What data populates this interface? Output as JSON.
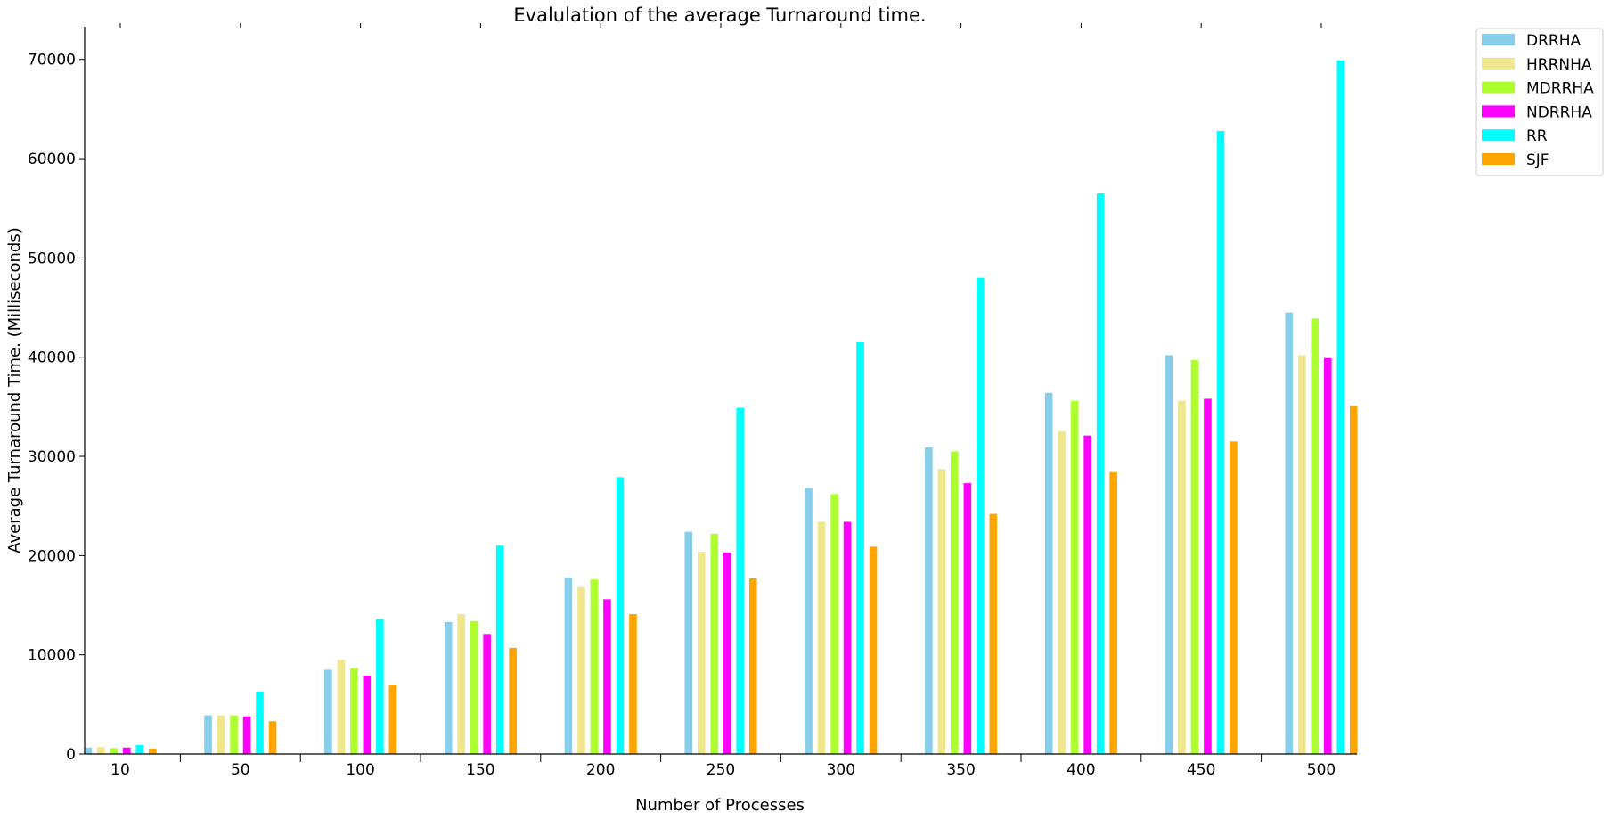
{
  "chart_data": {
    "type": "bar",
    "title": "Evalulation of the average Turnaround time.",
    "xlabel": "Number of Processes",
    "ylabel": "Average Turnaround Time. (Milliseconds)",
    "categories": [
      "10",
      "50",
      "100",
      "150",
      "200",
      "250",
      "300",
      "350",
      "400",
      "450",
      "500"
    ],
    "ylim": [
      0,
      73300
    ],
    "yticks": [
      "0",
      "10000",
      "20000",
      "30000",
      "40000",
      "50000",
      "60000",
      "70000"
    ],
    "grid": false,
    "legend_position": "top-right outside",
    "series": [
      {
        "name": "DRRHA",
        "color": "#87ceeb",
        "values": [
          650,
          3900,
          8500,
          13300,
          17800,
          22400,
          26800,
          30900,
          36400,
          40200,
          44500
        ]
      },
      {
        "name": "HRRNHA",
        "color": "#f0e68c",
        "values": [
          700,
          3900,
          9500,
          14100,
          16800,
          20400,
          23400,
          28700,
          32500,
          35600,
          40200
        ]
      },
      {
        "name": "MDRRHA",
        "color": "#adff2f",
        "values": [
          600,
          3900,
          8700,
          13400,
          17600,
          22200,
          26200,
          30500,
          35600,
          39700,
          43900
        ]
      },
      {
        "name": "NDRRHA",
        "color": "#ff00ff",
        "values": [
          650,
          3800,
          7900,
          12100,
          15600,
          20300,
          23400,
          27300,
          32100,
          35800,
          39900
        ]
      },
      {
        "name": "RR",
        "color": "#00ffff",
        "values": [
          900,
          6300,
          13600,
          21000,
          27900,
          34900,
          41500,
          48000,
          56500,
          62800,
          69900
        ]
      },
      {
        "name": "SJF",
        "color": "#ffa500",
        "values": [
          550,
          3300,
          7000,
          10700,
          14100,
          17700,
          20900,
          24200,
          28400,
          31500,
          35100
        ]
      }
    ]
  }
}
